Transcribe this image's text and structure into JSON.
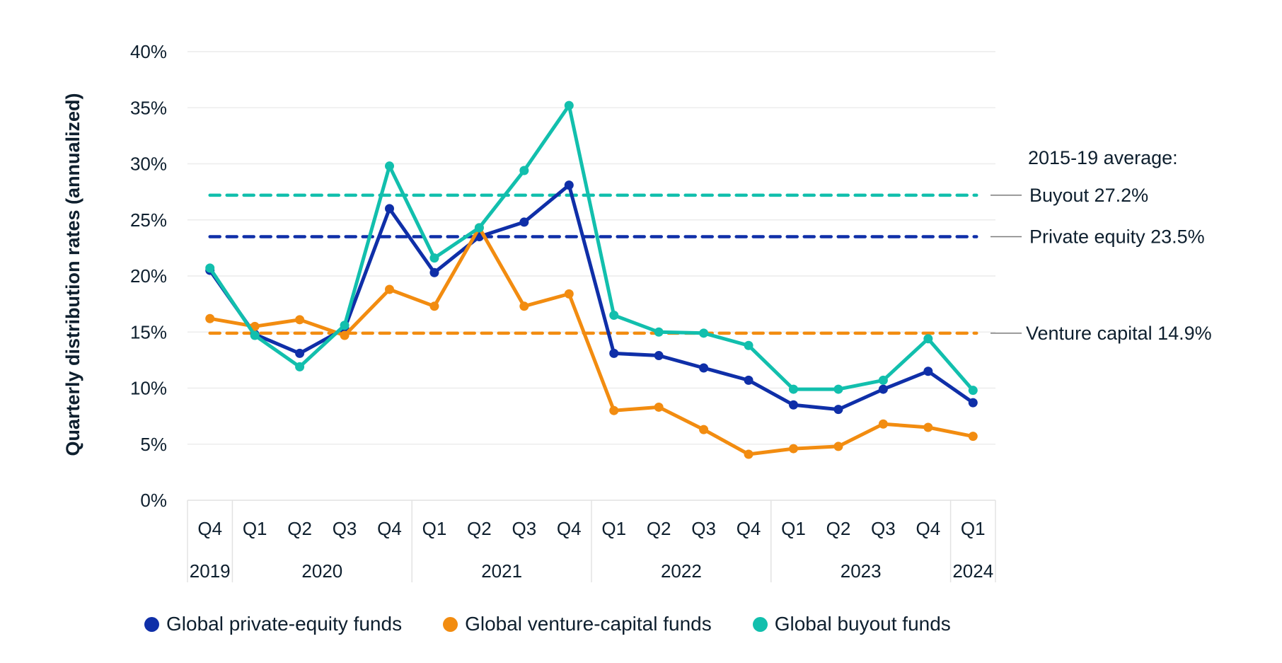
{
  "chart_data": {
    "type": "line",
    "title": "",
    "ylabel": "Quarterly distribution rates (annualized)",
    "xlabel": "",
    "ylim": [
      0,
      40
    ],
    "yticks": [
      0,
      5,
      10,
      15,
      20,
      25,
      30,
      35,
      40
    ],
    "ytick_labels": [
      "0%",
      "5%",
      "10%",
      "15%",
      "20%",
      "25%",
      "30%",
      "35%",
      "40%"
    ],
    "grid": true,
    "categories": [
      "Q4",
      "Q1",
      "Q2",
      "Q3",
      "Q4",
      "Q1",
      "Q2",
      "Q3",
      "Q4",
      "Q1",
      "Q2",
      "Q3",
      "Q4",
      "Q1",
      "Q2",
      "Q3",
      "Q4",
      "Q1"
    ],
    "year_groups": [
      {
        "label": "2019",
        "start": 0,
        "end": 0
      },
      {
        "label": "2020",
        "start": 1,
        "end": 4
      },
      {
        "label": "2021",
        "start": 5,
        "end": 8
      },
      {
        "label": "2022",
        "start": 9,
        "end": 12
      },
      {
        "label": "2023",
        "start": 13,
        "end": 16
      },
      {
        "label": "2024",
        "start": 17,
        "end": 17
      }
    ],
    "series": [
      {
        "name": "Global private-equity funds",
        "key": "pe",
        "color": "#0f2fa8",
        "values": [
          20.5,
          14.8,
          13.1,
          15.3,
          26.0,
          20.3,
          23.5,
          24.8,
          28.1,
          13.1,
          12.9,
          11.8,
          10.7,
          8.5,
          8.1,
          9.9,
          11.5,
          8.7
        ]
      },
      {
        "name": "Global venture-capital funds",
        "key": "vc",
        "color": "#f28c10",
        "values": [
          16.2,
          15.5,
          16.1,
          14.7,
          18.8,
          17.3,
          24.3,
          17.3,
          18.4,
          8.0,
          8.3,
          6.3,
          4.1,
          4.6,
          4.8,
          6.8,
          6.5,
          5.7
        ]
      },
      {
        "name": "Global buyout funds",
        "key": "bo",
        "color": "#12bfad",
        "values": [
          20.7,
          14.7,
          11.9,
          15.6,
          29.8,
          21.6,
          24.3,
          29.4,
          35.2,
          16.5,
          15.0,
          14.9,
          13.8,
          9.9,
          9.9,
          10.7,
          14.4,
          9.8
        ]
      }
    ],
    "reference_lines": [
      {
        "label": "Buyout 27.2%",
        "value": 27.2,
        "color": "#12bfad",
        "style": "dashed"
      },
      {
        "label": "Private equity 23.5%",
        "value": 23.5,
        "color": "#0f2fa8",
        "style": "dashed"
      },
      {
        "label": "Venture capital 14.9%",
        "value": 14.9,
        "color": "#f28c10",
        "style": "dashed"
      }
    ],
    "annotation_header": "2015-19 average:",
    "legend_position": "bottom"
  }
}
